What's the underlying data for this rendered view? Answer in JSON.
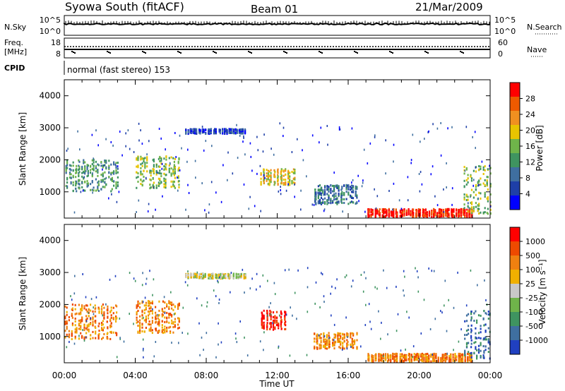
{
  "header": {
    "title": "Syowa South (fitACF)",
    "beam": "Beam 01",
    "date": "21/Mar/2009"
  },
  "nsky_panel": {
    "label": "N.Sky",
    "right_label": "N.Search",
    "left_ticks": [
      "10^5",
      "10^0"
    ],
    "right_ticks": [
      "10^5",
      "10^0"
    ]
  },
  "freq_panel": {
    "label_line1": "Freq.",
    "label_line2": "[MHz]",
    "right_label": "Nave",
    "left_ticks": [
      "18",
      "8"
    ],
    "right_ticks": [
      "60",
      "0"
    ]
  },
  "cpid": {
    "label": "CPID",
    "text": "normal (fast stereo) 153"
  },
  "chart_data": [
    {
      "type": "heatmap",
      "name": "power",
      "ylabel": "Slant Range [km]",
      "ylim": [
        180,
        4500
      ],
      "y_ticks": [
        "1000",
        "2000",
        "3000",
        "4000"
      ],
      "colorbar_label": "Power [dB]",
      "colorbar_ticks": [
        "28",
        "24",
        "20",
        "16",
        "12",
        "8",
        "4"
      ],
      "colors": [
        "#0000ff",
        "#1e3fa8",
        "#3f6fa0",
        "#3f9460",
        "#6fb44a",
        "#e8c400",
        "#f09020",
        "#ee5a00",
        "#ff0000"
      ],
      "blobs": [
        {
          "t0": 0.0,
          "t1": 3.0,
          "r0": 1000,
          "r1": 2000,
          "level": 3
        },
        {
          "t0": 4.0,
          "t1": 6.5,
          "r0": 1100,
          "r1": 2100,
          "level": 4
        },
        {
          "t0": 6.8,
          "t1": 10.2,
          "r0": 2800,
          "r1": 2950,
          "level": 1
        },
        {
          "t0": 11.0,
          "t1": 13.0,
          "r0": 1200,
          "r1": 1700,
          "level": 5
        },
        {
          "t0": 14.0,
          "t1": 16.5,
          "r0": 600,
          "r1": 1200,
          "level": 2
        },
        {
          "t0": 17.0,
          "t1": 23.0,
          "r0": 200,
          "r1": 450,
          "level": 8
        },
        {
          "t0": 22.5,
          "t1": 24.0,
          "r0": 300,
          "r1": 1800,
          "level": 4
        }
      ]
    },
    {
      "type": "heatmap",
      "name": "velocity",
      "ylabel": "Slant Range [km]",
      "xlabel": "Time UT",
      "ylim": [
        180,
        4500
      ],
      "y_ticks": [
        "1000",
        "2000",
        "3000",
        "4000"
      ],
      "x_ticks": [
        "00:00",
        "04:00",
        "08:00",
        "12:00",
        "16:00",
        "20:00",
        "00:00"
      ],
      "colorbar_label": "Velocity [m s⁻¹]",
      "colorbar_ticks": [
        "1000",
        "500",
        "100",
        "25",
        "-25",
        "-100",
        "-500",
        "-1000"
      ],
      "colors": [
        "#2040c0",
        "#3f6fa0",
        "#3f9460",
        "#6fb44a",
        "#c8c8c8",
        "#f0b000",
        "#f08010",
        "#ee4a00",
        "#ff0000"
      ],
      "blobs": [
        {
          "t0": 0.0,
          "t1": 3.0,
          "r0": 900,
          "r1": 2000,
          "level": 6
        },
        {
          "t0": 4.0,
          "t1": 6.5,
          "r0": 1100,
          "r1": 2100,
          "level": 6
        },
        {
          "t0": 6.8,
          "t1": 10.2,
          "r0": 2800,
          "r1": 2950,
          "level": 4
        },
        {
          "t0": 11.0,
          "t1": 12.5,
          "r0": 1200,
          "r1": 1800,
          "level": 8
        },
        {
          "t0": 14.0,
          "t1": 16.5,
          "r0": 600,
          "r1": 1100,
          "level": 6
        },
        {
          "t0": 17.0,
          "t1": 23.0,
          "r0": 200,
          "r1": 450,
          "level": 6
        },
        {
          "t0": 22.5,
          "t1": 24.0,
          "r0": 300,
          "r1": 1800,
          "level": 1
        }
      ]
    }
  ]
}
